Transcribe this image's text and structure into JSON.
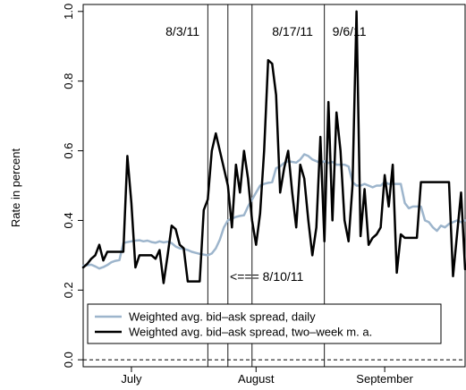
{
  "chart_data": {
    "type": "line",
    "title": "",
    "xlabel": "",
    "ylabel": "Rate in percent",
    "ylim": [
      -0.02,
      1.02
    ],
    "xlim": [
      0,
      95
    ],
    "x_ticks": [
      {
        "label": "July",
        "x": 12
      },
      {
        "label": "August",
        "x": 43
      },
      {
        "label": "September",
        "x": 75
      }
    ],
    "y_ticks": [
      {
        "value": 0.0,
        "label": "0.0"
      },
      {
        "value": 0.2,
        "label": "0.2"
      },
      {
        "value": 0.4,
        "label": "0.4"
      },
      {
        "value": 0.6,
        "label": "0.6"
      },
      {
        "value": 0.8,
        "label": "0.8"
      },
      {
        "value": 1.0,
        "label": "1.0"
      }
    ],
    "reference_line": {
      "y": 0.0,
      "style": "dashed"
    },
    "event_lines": [
      {
        "x": 31,
        "label": "8/3/11"
      },
      {
        "x": 36,
        "label": ""
      },
      {
        "x": 42,
        "label": "8/17/11"
      },
      {
        "x": 60,
        "label": "9/6/11"
      }
    ],
    "annotations": [
      {
        "text": "8/3/11",
        "x": 20.5,
        "y": 0.93
      },
      {
        "text": "8/17/11",
        "x": 47,
        "y": 0.93
      },
      {
        "text": "9/6/11",
        "x": 62,
        "y": 0.93
      },
      {
        "text": "<=== 8/10/11",
        "x": 36.5,
        "y": 0.227
      }
    ],
    "legend": {
      "position": "bottom-left"
    },
    "series": [
      {
        "name": "Weighted avg. bid–ask spread, daily",
        "color": "#9db5cc",
        "width": 2.5,
        "x": [
          0,
          2,
          3,
          4,
          5,
          6,
          7,
          8,
          9,
          10,
          11,
          12,
          13,
          14,
          15,
          16,
          17,
          18,
          19,
          20,
          21,
          22,
          23,
          24,
          25,
          26,
          27,
          28,
          29,
          30,
          31,
          32,
          33,
          34,
          35,
          36,
          37,
          38,
          39,
          40,
          41,
          42,
          43,
          44,
          45,
          46,
          47,
          48,
          49,
          50,
          51,
          52,
          53,
          54,
          55,
          56,
          57,
          58,
          59,
          60,
          61,
          62,
          63,
          64,
          65,
          66,
          67,
          68,
          69,
          70,
          71,
          72,
          73,
          74,
          75,
          76,
          77,
          78,
          79,
          80,
          81,
          82,
          83,
          84,
          85,
          86,
          87,
          88,
          89,
          90,
          91,
          92,
          93,
          94,
          95
        ],
        "values": [
          0.27,
          0.273,
          0.268,
          0.262,
          0.266,
          0.272,
          0.28,
          0.284,
          0.286,
          0.335,
          0.338,
          0.34,
          0.342,
          0.343,
          0.34,
          0.342,
          0.338,
          0.336,
          0.34,
          0.337,
          0.339,
          0.335,
          0.325,
          0.32,
          0.318,
          0.315,
          0.31,
          0.307,
          0.304,
          0.302,
          0.3,
          0.305,
          0.32,
          0.345,
          0.38,
          0.4,
          0.405,
          0.41,
          0.413,
          0.415,
          0.44,
          0.46,
          0.48,
          0.5,
          0.505,
          0.508,
          0.51,
          0.55,
          0.555,
          0.565,
          0.57,
          0.568,
          0.566,
          0.575,
          0.59,
          0.585,
          0.575,
          0.57,
          0.565,
          0.57,
          0.565,
          0.568,
          0.56,
          0.56,
          0.56,
          0.555,
          0.51,
          0.5,
          0.5,
          0.505,
          0.5,
          0.495,
          0.5,
          0.5,
          0.51,
          0.505,
          0.505,
          0.505,
          0.505,
          0.45,
          0.435,
          0.44,
          0.44,
          0.44,
          0.4,
          0.395,
          0.38,
          0.37,
          0.385,
          0.38,
          0.39,
          0.395,
          0.4,
          0.395,
          0.4
        ]
      },
      {
        "name": "Weighted avg. bid–ask spread, two–week m. a.",
        "color": "#000000",
        "width": 2.5,
        "x": [
          0,
          1,
          2,
          3,
          4,
          5,
          6,
          7,
          8,
          9,
          10,
          11,
          12,
          13,
          14,
          15,
          16,
          17,
          18,
          19,
          20,
          21,
          22,
          23,
          24,
          25,
          26,
          27,
          28,
          29,
          30,
          31,
          32,
          33,
          34,
          35,
          36,
          37,
          38,
          39,
          40,
          41,
          42,
          43,
          44,
          45,
          46,
          47,
          48,
          49,
          50,
          51,
          52,
          53,
          54,
          55,
          56,
          57,
          58,
          59,
          60,
          61,
          62,
          63,
          64,
          65,
          66,
          67,
          68,
          69,
          70,
          71,
          72,
          73,
          74,
          75,
          76,
          77,
          78,
          79,
          80,
          81,
          82,
          83,
          84,
          85,
          86,
          87,
          88,
          89,
          90,
          91,
          92,
          93,
          94,
          95
        ],
        "values": [
          0.265,
          0.275,
          0.29,
          0.3,
          0.33,
          0.285,
          0.31,
          0.31,
          0.31,
          0.31,
          0.31,
          0.585,
          0.45,
          0.265,
          0.3,
          0.3,
          0.3,
          0.3,
          0.29,
          0.315,
          0.22,
          0.3,
          0.385,
          0.375,
          0.33,
          0.32,
          0.225,
          0.225,
          0.225,
          0.225,
          0.43,
          0.46,
          0.6,
          0.65,
          0.6,
          0.55,
          0.5,
          0.38,
          0.56,
          0.48,
          0.6,
          0.52,
          0.4,
          0.33,
          0.42,
          0.6,
          0.86,
          0.85,
          0.76,
          0.48,
          0.55,
          0.6,
          0.48,
          0.38,
          0.56,
          0.52,
          0.4,
          0.3,
          0.38,
          0.64,
          0.34,
          0.74,
          0.4,
          0.71,
          0.6,
          0.4,
          0.34,
          0.5,
          1.0,
          0.355,
          0.49,
          0.33,
          0.35,
          0.36,
          0.38,
          0.53,
          0.44,
          0.56,
          0.25,
          0.36,
          0.35,
          0.35,
          0.35,
          0.35,
          0.51,
          0.51,
          0.51,
          0.51,
          0.51,
          0.51,
          0.51,
          0.51,
          0.24,
          0.36,
          0.48,
          0.26
        ]
      }
    ]
  }
}
